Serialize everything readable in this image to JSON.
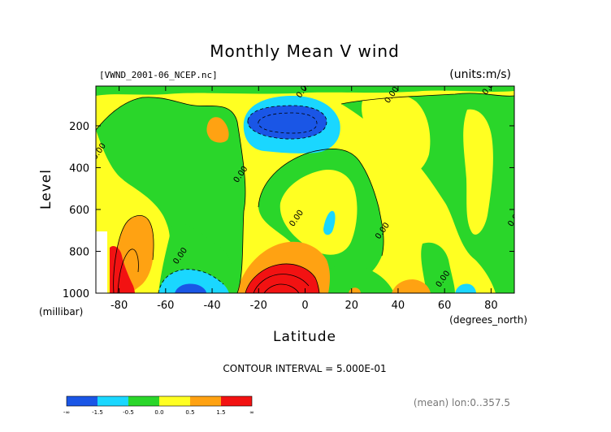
{
  "chart_data": {
    "type": "heatmap",
    "title": "Monthly Mean V wind",
    "subtitle_left": "[VWND_2001-06_NCEP.nc]",
    "subtitle_right": "(units:m/s)",
    "xlabel": "Latitude",
    "xunit": "(degrees_north)",
    "ylabel": "Level",
    "yunit": "(millibar)",
    "xlim": [
      -90,
      90
    ],
    "ylim": [
      1000,
      10
    ],
    "x_ticks": [
      -80,
      -60,
      -40,
      -20,
      0,
      20,
      40,
      60,
      80
    ],
    "y_ticks": [
      200,
      400,
      600,
      800,
      1000
    ],
    "contour_interval_text": "CONTOUR INTERVAL = 5.000E-01",
    "footnote": "(mean) lon:0..357.5",
    "contour_labels": [
      {
        "text": "0.00",
        "lat": -1,
        "lev": 25
      },
      {
        "text": "0.00",
        "lat": 37,
        "lev": 50
      },
      {
        "text": "0.00",
        "lat": 79,
        "lev": 10
      },
      {
        "text": "0.00",
        "lat": -89,
        "lev": 320
      },
      {
        "text": "0.00",
        "lat": -28,
        "lev": 430
      },
      {
        "text": "0.00",
        "lat": -4,
        "lev": 640
      },
      {
        "text": "0.00",
        "lat": 33,
        "lev": 700
      },
      {
        "text": "0.00",
        "lat": 90,
        "lev": 640
      },
      {
        "text": "0.00",
        "lat": -54,
        "lev": 820
      },
      {
        "text": "0.00",
        "lat": 59,
        "lev": 930
      }
    ],
    "legend": {
      "colors": [
        "#1a56e6",
        "#1ad7ff",
        "#2ad62a",
        "#ffff22",
        "#ffa212",
        "#f21212"
      ],
      "labels": [
        "-∞",
        "-1.5",
        "-0.5",
        "0.0",
        "0.5",
        "1.5",
        "∞"
      ]
    }
  }
}
